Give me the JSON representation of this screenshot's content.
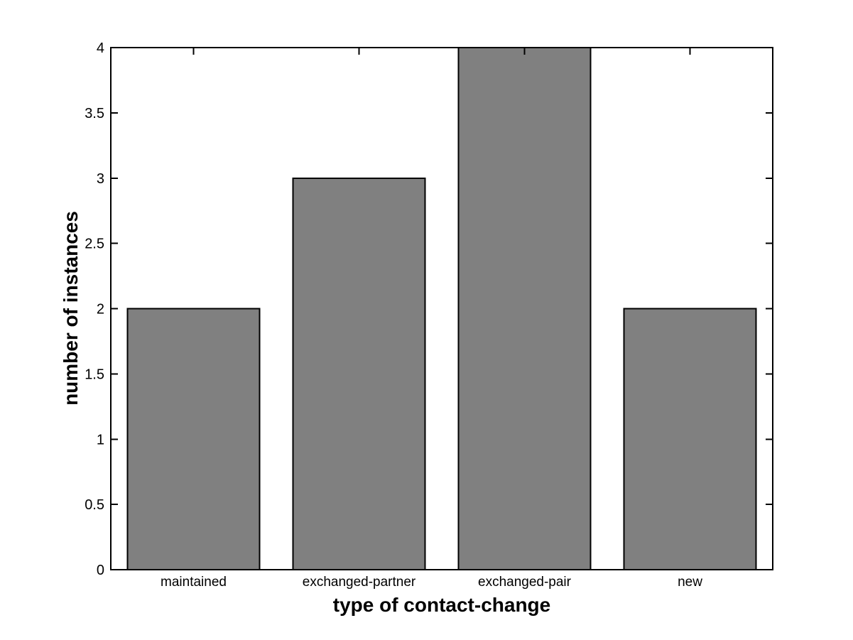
{
  "chart_data": {
    "type": "bar",
    "title": "",
    "categories": [
      "maintained",
      "exchanged-partner",
      "exchanged-pair",
      "new"
    ],
    "values": [
      2,
      3,
      4,
      2
    ],
    "xlabel": "type of contact-change",
    "ylabel": "number of instances",
    "ylim": [
      0,
      4
    ],
    "ytick_step": 0.5,
    "ytick_labels": [
      "0",
      "0.5",
      "1",
      "1.5",
      "2",
      "2.5",
      "3",
      "3.5",
      "4"
    ],
    "bar_color": "#808080",
    "bar_edge_color": "#000000",
    "axis_color": "#000000",
    "background_color": "#ffffff",
    "grid": false,
    "legend": "none",
    "bar_width_fraction": 0.8
  }
}
